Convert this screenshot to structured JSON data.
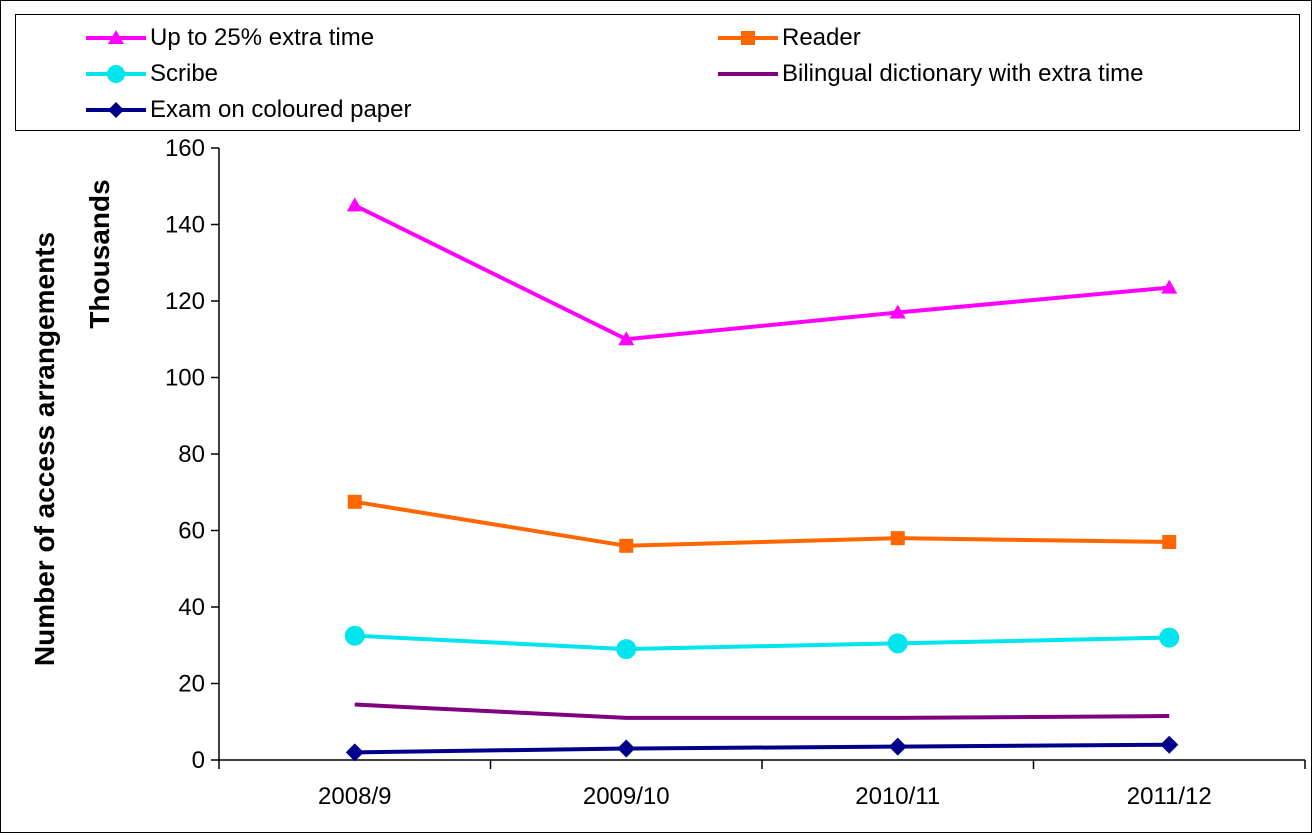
{
  "chart_data": {
    "type": "line",
    "categories": [
      "2008/9",
      "2009/10",
      "2010/11",
      "2011/12"
    ],
    "ylabel": "Number of access arrangements",
    "yunit_label": "Thousands",
    "ylim": [
      0,
      160
    ],
    "yticks": [
      0,
      20,
      40,
      60,
      80,
      100,
      120,
      140,
      160
    ],
    "grid": false,
    "legend_position": "top",
    "series": [
      {
        "name": "Up to 25% extra time",
        "values": [
          145,
          110,
          117,
          123.5
        ],
        "color": "#ff00ff",
        "marker": "triangle"
      },
      {
        "name": "Reader",
        "values": [
          67.5,
          56,
          58,
          57
        ],
        "color": "#ff6600",
        "marker": "square"
      },
      {
        "name": "Scribe",
        "values": [
          32.5,
          29,
          30.5,
          32
        ],
        "color": "#00e5ee",
        "marker": "circle"
      },
      {
        "name": "Bilingual dictionary with extra time",
        "values": [
          14.5,
          11,
          11,
          11.5
        ],
        "color": "#800080",
        "marker": "none"
      },
      {
        "name": "Exam on coloured paper",
        "values": [
          2,
          3,
          3.5,
          4
        ],
        "color": "#00008b",
        "marker": "diamond"
      }
    ]
  }
}
